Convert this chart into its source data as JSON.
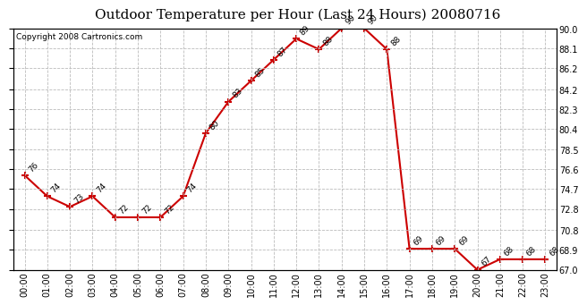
{
  "title": "Outdoor Temperature per Hour (Last 24 Hours) 20080716",
  "copyright": "Copyright 2008 Cartronics.com",
  "hours": [
    "00:00",
    "01:00",
    "02:00",
    "03:00",
    "04:00",
    "05:00",
    "06:00",
    "07:00",
    "08:00",
    "09:00",
    "10:00",
    "11:00",
    "12:00",
    "13:00",
    "14:00",
    "15:00",
    "16:00",
    "17:00",
    "18:00",
    "19:00",
    "20:00",
    "21:00",
    "22:00",
    "23:00"
  ],
  "temps": [
    76,
    74,
    73,
    74,
    72,
    72,
    72,
    74,
    80,
    83,
    85,
    87,
    89,
    88,
    90,
    90,
    88,
    69,
    69,
    69,
    67,
    68,
    68,
    68
  ],
  "ylim": [
    67.0,
    90.0
  ],
  "yticks": [
    67.0,
    68.9,
    70.8,
    72.8,
    74.7,
    76.6,
    78.5,
    80.4,
    82.3,
    84.2,
    86.2,
    88.1,
    90.0
  ],
  "ytick_labels": [
    "67.0",
    "68.9",
    "70.8",
    "72.8",
    "74.7",
    "76.6",
    "78.5",
    "80.4",
    "82.3",
    "84.2",
    "86.2",
    "88.1",
    "90.0"
  ],
  "line_color": "#cc0000",
  "marker_color": "#cc0000",
  "bg_color": "#ffffff",
  "grid_color": "#bbbbbb",
  "title_fontsize": 11,
  "label_fontsize": 7,
  "annotation_fontsize": 6.5,
  "copyright_fontsize": 6.5
}
